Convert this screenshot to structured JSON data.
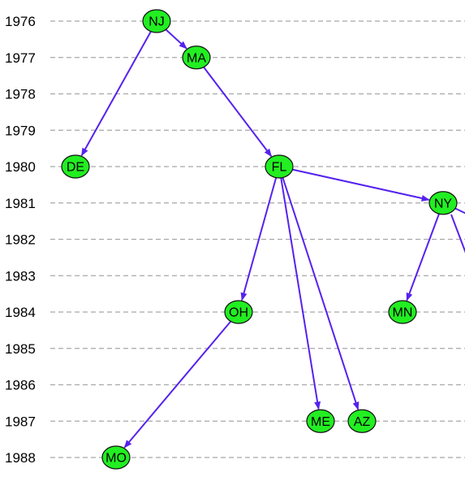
{
  "colors": {
    "node_fill": "#22ee22",
    "node_stroke": "#111111",
    "edge": "#5522ee",
    "grid": "#a8a8a8"
  },
  "years": [
    "1976",
    "1977",
    "1978",
    "1979",
    "1980",
    "1981",
    "1982",
    "1983",
    "1984",
    "1985",
    "1986",
    "1987",
    "1988"
  ],
  "nodes": [
    {
      "id": "NJ",
      "label": "NJ",
      "year": "1976"
    },
    {
      "id": "MA",
      "label": "MA",
      "year": "1977"
    },
    {
      "id": "DE",
      "label": "DE",
      "year": "1980"
    },
    {
      "id": "FL",
      "label": "FL",
      "year": "1980"
    },
    {
      "id": "NY",
      "label": "NY",
      "year": "1981"
    },
    {
      "id": "OH",
      "label": "OH",
      "year": "1984"
    },
    {
      "id": "MN",
      "label": "MN",
      "year": "1984"
    },
    {
      "id": "ME",
      "label": "ME",
      "year": "1987"
    },
    {
      "id": "AZ",
      "label": "AZ",
      "year": "1987"
    },
    {
      "id": "MO",
      "label": "MO",
      "year": "1988"
    }
  ],
  "edges": [
    {
      "from": "NJ",
      "to": "MA"
    },
    {
      "from": "NJ",
      "to": "DE"
    },
    {
      "from": "MA",
      "to": "FL"
    },
    {
      "from": "FL",
      "to": "NY"
    },
    {
      "from": "FL",
      "to": "OH"
    },
    {
      "from": "FL",
      "to": "ME"
    },
    {
      "from": "FL",
      "to": "AZ"
    },
    {
      "from": "NY",
      "to": "MN"
    },
    {
      "from": "OH",
      "to": "MO"
    }
  ]
}
